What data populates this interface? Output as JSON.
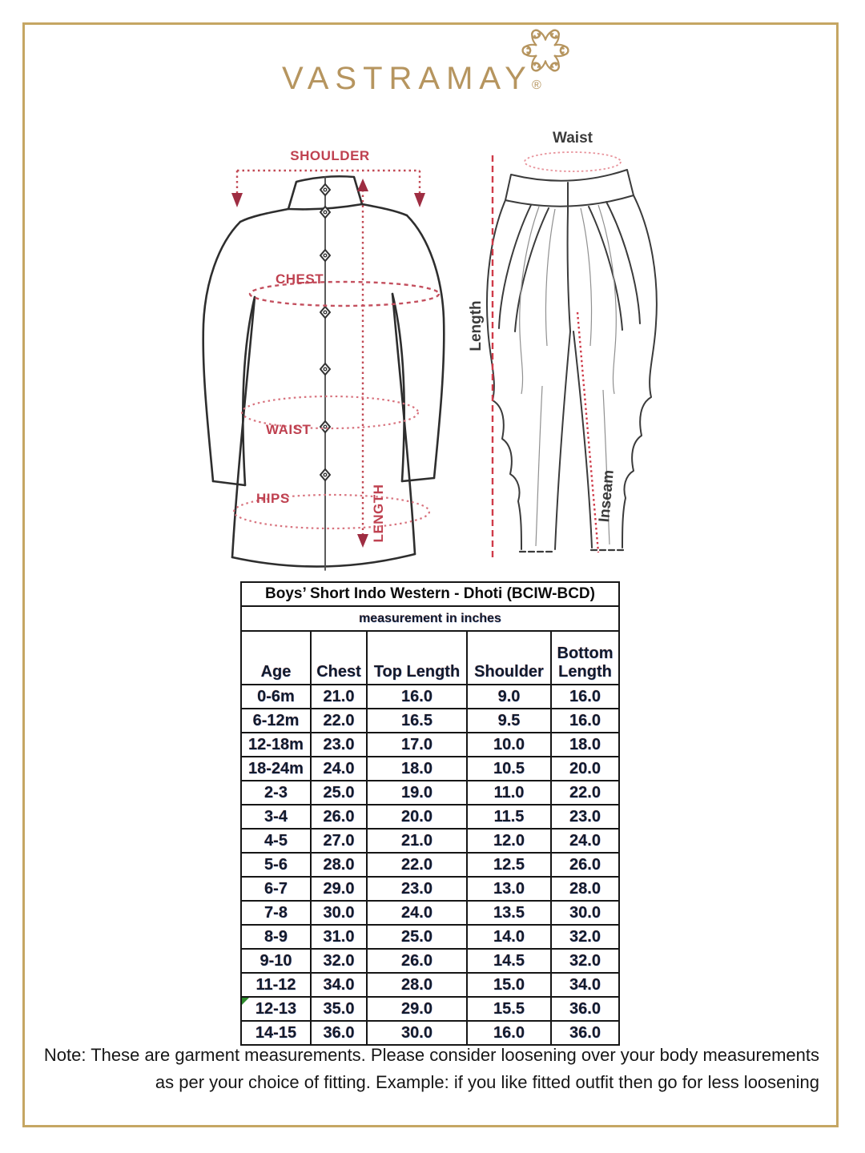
{
  "logo": {
    "text": "VASTRAMAY",
    "reg": "®"
  },
  "sketch_labels": {
    "kurta": {
      "shoulder": "SHOULDER",
      "chest": "CHEST",
      "waist": "WAIST",
      "hips": "HIPS",
      "length": "LENGTH"
    },
    "dhoti": {
      "waist": "Waist",
      "length": "Length",
      "inseam": "Inseam"
    }
  },
  "size_chart": {
    "title": "Boys’ Short Indo Western - Dhoti (BCIW-BCD)",
    "subtitle": "measurement in inches",
    "columns": [
      "Age",
      "Chest",
      "Top Length",
      "Shoulder",
      "Bottom Length"
    ],
    "rows": [
      [
        "0-6m",
        "21.0",
        "16.0",
        "9.0",
        "16.0"
      ],
      [
        "6-12m",
        "22.0",
        "16.5",
        "9.5",
        "16.0"
      ],
      [
        "12-18m",
        "23.0",
        "17.0",
        "10.0",
        "18.0"
      ],
      [
        "18-24m",
        "24.0",
        "18.0",
        "10.5",
        "20.0"
      ],
      [
        "2-3",
        "25.0",
        "19.0",
        "11.0",
        "22.0"
      ],
      [
        "3-4",
        "26.0",
        "20.0",
        "11.5",
        "23.0"
      ],
      [
        "4-5",
        "27.0",
        "21.0",
        "12.0",
        "24.0"
      ],
      [
        "5-6",
        "28.0",
        "22.0",
        "12.5",
        "26.0"
      ],
      [
        "6-7",
        "29.0",
        "23.0",
        "13.0",
        "28.0"
      ],
      [
        "7-8",
        "30.0",
        "24.0",
        "13.5",
        "30.0"
      ],
      [
        "8-9",
        "31.0",
        "25.0",
        "14.0",
        "32.0"
      ],
      [
        "9-10",
        "32.0",
        "26.0",
        "14.5",
        "32.0"
      ],
      [
        "11-12",
        "34.0",
        "28.0",
        "15.0",
        "34.0"
      ],
      [
        "12-13",
        "35.0",
        "29.0",
        "15.5",
        "36.0"
      ],
      [
        "14-15",
        "36.0",
        "30.0",
        "16.0",
        "36.0"
      ]
    ],
    "marker_row": "12-13"
  },
  "note": {
    "line1": "Note: These are garment measurements. Please consider loosening over your body measurements",
    "line2": "as per your choice of fitting. Example: if you like fitted outfit then go for less loosening"
  },
  "colors": {
    "brand_gold": "#b6955f",
    "frame_gold": "#c5a663",
    "label_red": "#bf4150",
    "dotted_red": "#c24a55",
    "ellipse_pink": "#d8737e",
    "table_ink": "#121a2c",
    "marker_green": "#2e8b2e"
  }
}
